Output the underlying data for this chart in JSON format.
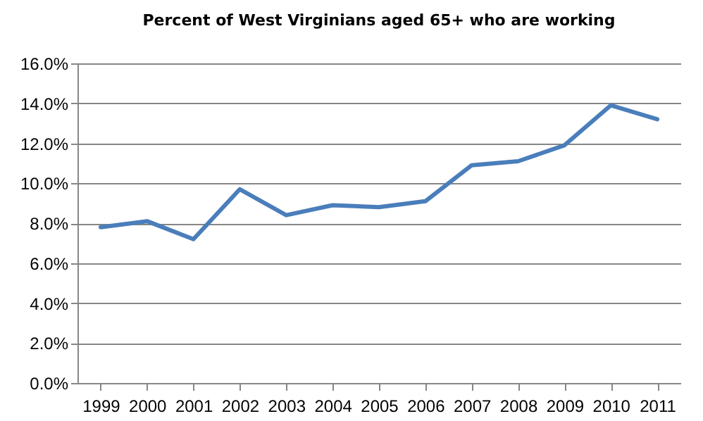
{
  "chart_data": {
    "type": "line",
    "title": "Percent of West Virginians aged 65+ who are working",
    "categories": [
      "1999",
      "2000",
      "2001",
      "2002",
      "2003",
      "2004",
      "2005",
      "2006",
      "2007",
      "2008",
      "2009",
      "2010",
      "2011"
    ],
    "series": [
      {
        "color": "#4a7ebb",
        "values": [
          7.8,
          8.1,
          7.2,
          9.7,
          8.4,
          8.9,
          8.8,
          9.1,
          10.9,
          11.1,
          11.9,
          13.9,
          13.2
        ]
      }
    ],
    "ylim": [
      0,
      16
    ],
    "yticks": [
      {
        "value": 0,
        "label": "0.0%"
      },
      {
        "value": 2,
        "label": "2.0%"
      },
      {
        "value": 4,
        "label": "4.0%"
      },
      {
        "value": 6,
        "label": "6.0%"
      },
      {
        "value": 8,
        "label": "8.0%"
      },
      {
        "value": 10,
        "label": "10.0%"
      },
      {
        "value": 12,
        "label": "12.0%"
      },
      {
        "value": 14,
        "label": "14.0%"
      },
      {
        "value": 16,
        "label": "16.0%"
      }
    ],
    "grid": "y",
    "legend": false,
    "marker": "none",
    "line_style": "solid"
  }
}
